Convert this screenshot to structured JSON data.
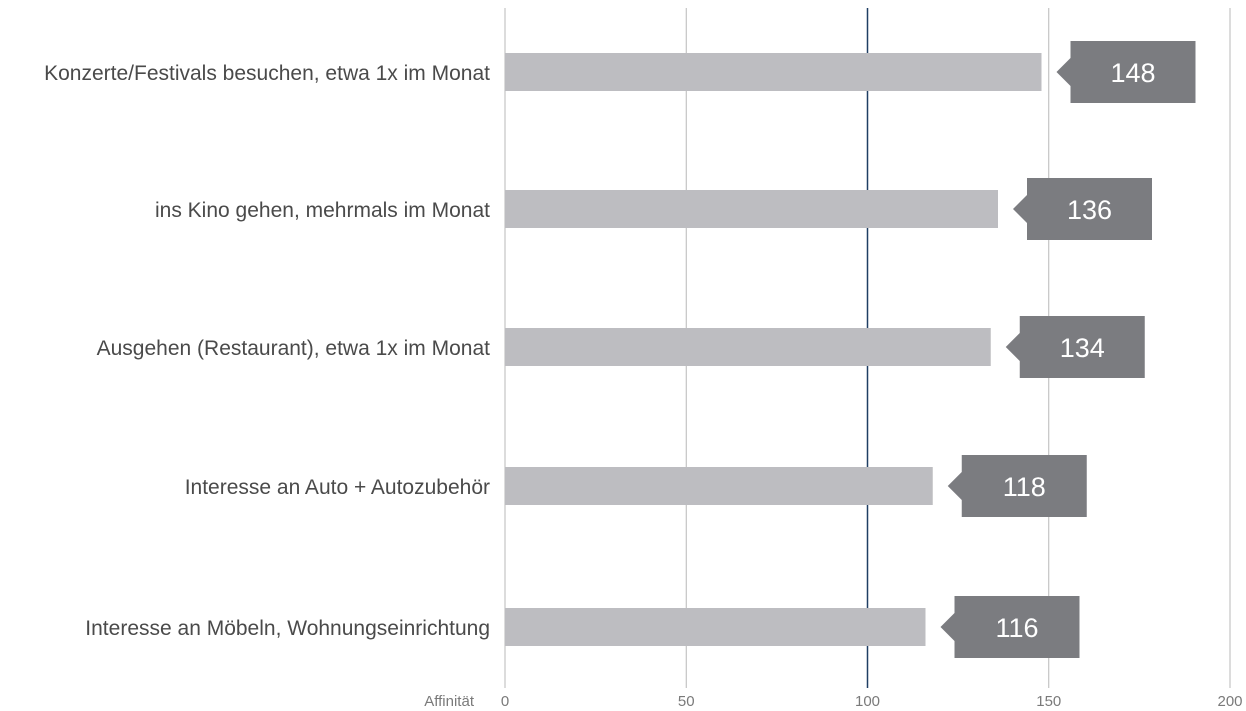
{
  "chart_data": {
    "type": "bar",
    "orientation": "horizontal",
    "categories": [
      "Konzerte/Festivals besuchen, etwa 1x im Monat",
      "ins Kino gehen, mehrmals im Monat",
      "Ausgehen (Restaurant), etwa 1x im Monat",
      "Interesse an Auto + Autozubehör",
      "Interesse an Möbeln, Wohnungseinrichtung"
    ],
    "values": [
      148,
      136,
      134,
      118,
      116
    ],
    "value_labels": [
      "148",
      "136",
      "134",
      "118",
      "116"
    ],
    "xlabel": "Affinität",
    "xlim": [
      0,
      200
    ],
    "xticks": [
      0,
      50,
      100,
      150,
      200
    ],
    "reference_line": 100,
    "grid": true,
    "colors": {
      "bar": "#bdbdc1",
      "label_box": "#7b7c80",
      "label_text": "#ffffff",
      "grid": "#b8b8b8",
      "reference": "#1f3e63",
      "text": "#4a4a4a",
      "tick_text": "#7a7a7a"
    }
  }
}
